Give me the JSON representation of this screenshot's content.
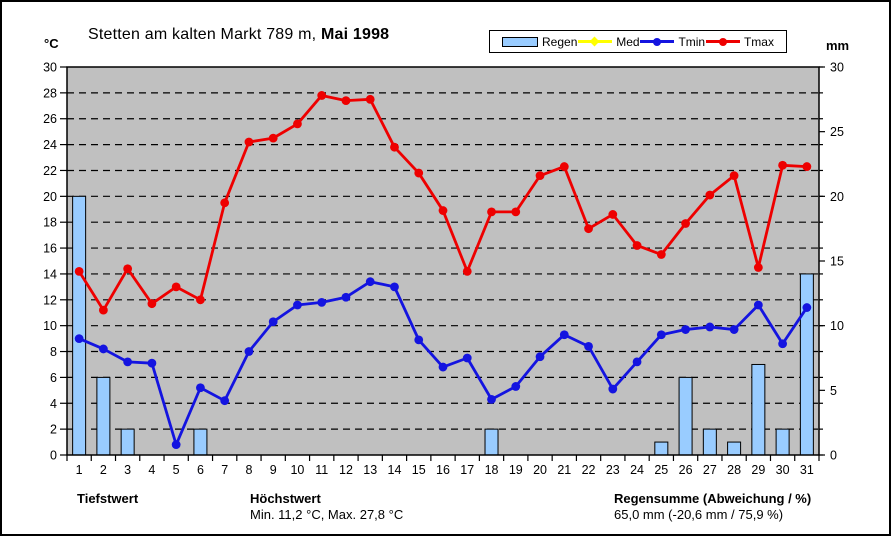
{
  "header": {
    "title_prefix": "Stetten am kalten Markt 789 m, ",
    "title_bold": "Mai 1998"
  },
  "axes": {
    "left_unit": "°C",
    "right_unit": "mm",
    "left_ticks": [
      0,
      2,
      4,
      6,
      8,
      10,
      12,
      14,
      16,
      18,
      20,
      22,
      24,
      26,
      28,
      30
    ],
    "right_ticks": [
      0,
      5,
      10,
      15,
      20,
      25,
      30
    ]
  },
  "footer": {
    "col1_title": "Tiefstwert",
    "col2_title": "Höchstwert",
    "col2_value": "Min. 11,2 °C, Max. 27,8 °C",
    "col3_title": "Regensumme (Abweichung / %)",
    "col3_value": "65,0 mm (-20,6 mm / 75,9 %)"
  },
  "chart_data": {
    "type": "combo",
    "title": "Stetten am kalten Markt 789 m, Mai 1998",
    "plot_bg": "#C0C0C0",
    "grid": "horizontal-dashed-black",
    "legend_position": "top",
    "ylim_left": [
      0,
      30
    ],
    "ylim_right": [
      0,
      30
    ],
    "ylabel_left": "°C",
    "ylabel_right": "mm",
    "x": [
      1,
      2,
      3,
      4,
      5,
      6,
      7,
      8,
      9,
      10,
      11,
      12,
      13,
      14,
      15,
      16,
      17,
      18,
      19,
      20,
      21,
      22,
      23,
      24,
      25,
      26,
      27,
      28,
      29,
      30,
      31
    ],
    "series": [
      {
        "name": "Regen",
        "type": "bar",
        "axis": "right",
        "unit": "mm",
        "color": "#99CCFF",
        "values": [
          20,
          6,
          2,
          0,
          0,
          2,
          0,
          0,
          0,
          0,
          0,
          0,
          0,
          0,
          0,
          0,
          0,
          2,
          0,
          0,
          0,
          0,
          0,
          0,
          1,
          6,
          2,
          1,
          7,
          2,
          14
        ]
      },
      {
        "name": "Med",
        "type": "line",
        "axis": "left",
        "unit": "°C",
        "color": "#FFFF00",
        "values": []
      },
      {
        "name": "Tmin",
        "type": "line",
        "axis": "left",
        "unit": "°C",
        "color": "#1414E0",
        "values": [
          9.0,
          8.2,
          7.2,
          7.1,
          0.8,
          5.2,
          4.2,
          8.0,
          10.3,
          11.6,
          11.8,
          12.2,
          13.4,
          13.0,
          8.9,
          6.8,
          7.5,
          4.3,
          5.3,
          7.6,
          9.3,
          8.4,
          5.1,
          7.2,
          9.3,
          9.7,
          9.9,
          9.7,
          11.6,
          8.6,
          11.4
        ]
      },
      {
        "name": "Tmax",
        "type": "line",
        "axis": "left",
        "unit": "°C",
        "color": "#EE0000",
        "values": [
          14.2,
          11.2,
          14.4,
          11.7,
          13.0,
          12.0,
          19.5,
          24.2,
          24.5,
          25.6,
          27.8,
          27.4,
          27.5,
          23.8,
          21.8,
          18.9,
          14.2,
          18.8,
          18.8,
          21.6,
          22.3,
          17.5,
          18.6,
          16.2,
          15.5,
          17.9,
          20.1,
          21.6,
          14.5,
          22.4,
          22.3
        ]
      }
    ]
  }
}
